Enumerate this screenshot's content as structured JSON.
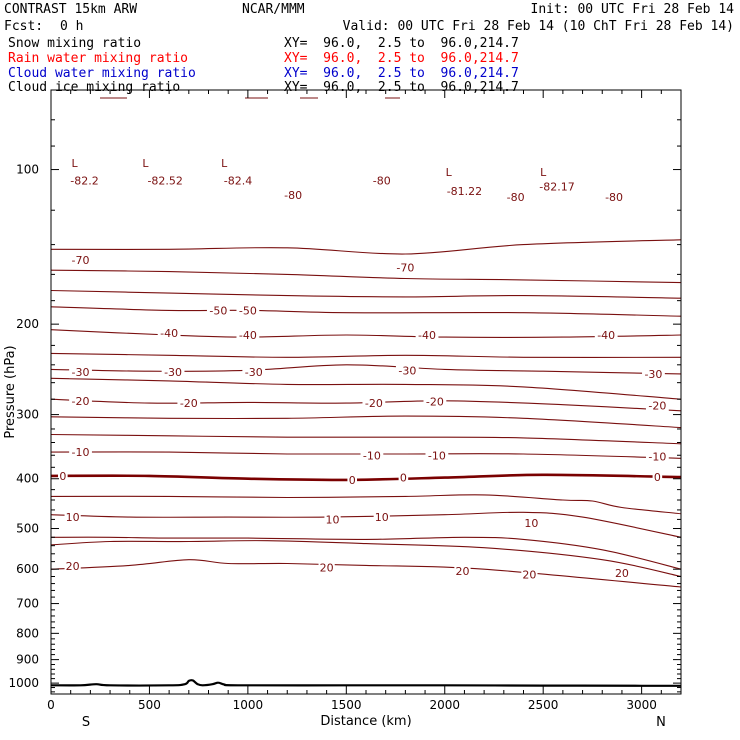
{
  "header": {
    "title": "CONTRAST 15km ARW",
    "center": "NCAR/MMM",
    "init": "Init: 00 UTC Fri 28 Feb 14",
    "fcst_label": "Fcst:",
    "fcst_value": "0 h",
    "valid": "Valid: 00 UTC Fri 28 Feb 14 (10 ChT Fri 28 Feb 14)"
  },
  "fields": [
    {
      "name": "Snow mixing ratio",
      "xy": "XY=  96.0,  2.5 to  96.0,214.7",
      "color": "#000000"
    },
    {
      "name": "Rain water mixing ratio",
      "xy": "XY=  96.0,  2.5 to  96.0,214.7",
      "color": "#ff0000"
    },
    {
      "name": "Cloud water mixing ratio",
      "xy": "XY=  96.0,  2.5 to  96.0,214.7",
      "color": "#0000cc"
    },
    {
      "name": "Cloud ice mixing ratio",
      "xy": "XY=  96.0,  2.5 to  96.0,214.7",
      "color": "#000000"
    }
  ],
  "chart_data": {
    "type": "line",
    "title": "",
    "xlabel": "Distance (km)",
    "ylabel": "Pressure (hPa)",
    "xlim": [
      0,
      3200
    ],
    "ylim": [
      1050,
      70
    ],
    "y_scale": "log",
    "x_ticks": [
      0,
      500,
      1000,
      1500,
      2000,
      2500,
      3000
    ],
    "y_ticks": [
      100,
      200,
      300,
      400,
      500,
      600,
      700,
      800,
      900,
      1000
    ],
    "x_end_labels": {
      "left": "S",
      "right": "N"
    },
    "contour_color": "#7a1010",
    "zero_line_color": "#7a0000",
    "terrain_color": "#000000",
    "isotherms": [
      {
        "value": -70,
        "points": [
          [
            0,
            143
          ],
          [
            600,
            143
          ],
          [
            1200,
            142
          ],
          [
            1800,
            146
          ],
          [
            2400,
            140
          ],
          [
            3200,
            137
          ]
        ]
      },
      {
        "value": -70,
        "points": [
          [
            0,
            157
          ],
          [
            600,
            158
          ],
          [
            1200,
            160
          ],
          [
            1800,
            163
          ],
          [
            2400,
            164
          ],
          [
            3200,
            166
          ]
        ]
      },
      {
        "value": -60,
        "points": [
          [
            0,
            172
          ],
          [
            600,
            174
          ],
          [
            1200,
            176
          ],
          [
            1800,
            177
          ],
          [
            2400,
            176
          ],
          [
            3200,
            178
          ]
        ]
      },
      {
        "value": -50,
        "points": [
          [
            0,
            185
          ],
          [
            600,
            188
          ],
          [
            1000,
            188
          ],
          [
            1500,
            190
          ],
          [
            2400,
            190
          ],
          [
            3200,
            193
          ]
        ]
      },
      {
        "value": -40,
        "points": [
          [
            0,
            205
          ],
          [
            600,
            210
          ],
          [
            1000,
            212
          ],
          [
            1500,
            210
          ],
          [
            2000,
            212
          ],
          [
            2600,
            212
          ],
          [
            3200,
            210
          ]
        ]
      },
      {
        "value": -40,
        "points": [
          [
            0,
            228
          ],
          [
            600,
            230
          ],
          [
            1200,
            232
          ],
          [
            1800,
            230
          ],
          [
            2400,
            232
          ],
          [
            3200,
            232
          ]
        ]
      },
      {
        "value": -30,
        "points": [
          [
            0,
            245
          ],
          [
            500,
            247
          ],
          [
            1000,
            246
          ],
          [
            1500,
            240
          ],
          [
            2000,
            245
          ],
          [
            2500,
            247
          ],
          [
            3200,
            250
          ]
        ]
      },
      {
        "value": -30,
        "points": [
          [
            0,
            255
          ],
          [
            600,
            258
          ],
          [
            1200,
            262
          ],
          [
            1800,
            262
          ],
          [
            2400,
            265
          ],
          [
            3200,
            280
          ]
        ]
      },
      {
        "value": -20,
        "points": [
          [
            0,
            280
          ],
          [
            500,
            285
          ],
          [
            1000,
            284
          ],
          [
            1500,
            285
          ],
          [
            2000,
            282
          ],
          [
            2600,
            287
          ],
          [
            3200,
            295
          ]
        ]
      },
      {
        "value": -20,
        "points": [
          [
            0,
            303
          ],
          [
            600,
            305
          ],
          [
            1200,
            305
          ],
          [
            1800,
            302
          ],
          [
            2400,
            305
          ],
          [
            3200,
            318
          ]
        ]
      },
      {
        "value": -10,
        "points": [
          [
            0,
            328
          ],
          [
            600,
            330
          ],
          [
            1200,
            332
          ],
          [
            1800,
            332
          ],
          [
            2400,
            333
          ],
          [
            3200,
            342
          ]
        ]
      },
      {
        "value": -10,
        "points": [
          [
            0,
            355
          ],
          [
            600,
            355
          ],
          [
            1200,
            358
          ],
          [
            1800,
            358
          ],
          [
            2400,
            358
          ],
          [
            3200,
            365
          ]
        ]
      },
      {
        "value": 0,
        "points": [
          [
            0,
            395
          ],
          [
            500,
            395
          ],
          [
            1000,
            400
          ],
          [
            1500,
            402
          ],
          [
            2000,
            398
          ],
          [
            2500,
            393
          ],
          [
            3200,
            397
          ]
        ]
      },
      {
        "value": 0,
        "points": [
          [
            0,
            433
          ],
          [
            600,
            433
          ],
          [
            1200,
            435
          ],
          [
            1800,
            433
          ],
          [
            2200,
            430
          ],
          [
            2600,
            440
          ],
          [
            2750,
            442
          ],
          [
            2900,
            455
          ],
          [
            3200,
            468
          ]
        ]
      },
      {
        "value": 10,
        "points": [
          [
            0,
            470
          ],
          [
            400,
            475
          ],
          [
            900,
            475
          ],
          [
            1400,
            475
          ],
          [
            2000,
            470
          ],
          [
            2400,
            465
          ],
          [
            2700,
            475
          ],
          [
            3200,
            520
          ]
        ]
      },
      {
        "value": 10,
        "points": [
          [
            0,
            520
          ],
          [
            300,
            520
          ],
          [
            600,
            522
          ],
          [
            1000,
            522
          ],
          [
            1600,
            525
          ],
          [
            2100,
            520
          ],
          [
            2400,
            525
          ],
          [
            2800,
            550
          ],
          [
            3200,
            600
          ]
        ]
      },
      {
        "value": 20,
        "points": [
          [
            0,
            538
          ],
          [
            300,
            530
          ],
          [
            700,
            530
          ],
          [
            1100,
            528
          ],
          [
            1600,
            535
          ],
          [
            2200,
            545
          ],
          [
            2800,
            575
          ],
          [
            3200,
            620
          ]
        ]
      },
      {
        "value": 20,
        "points": [
          [
            0,
            600
          ],
          [
            400,
            590
          ],
          [
            700,
            575
          ],
          [
            900,
            585
          ],
          [
            1200,
            585
          ],
          [
            1600,
            590
          ],
          [
            2200,
            600
          ],
          [
            3200,
            650
          ]
        ]
      }
    ],
    "contour_labels": [
      {
        "text": "-82.2",
        "x": 170,
        "p": 105
      },
      {
        "text": "-82.52",
        "x": 580,
        "p": 105
      },
      {
        "text": "-82.4",
        "x": 950,
        "p": 105
      },
      {
        "text": "-80",
        "x": 1230,
        "p": 112
      },
      {
        "text": "-80",
        "x": 1680,
        "p": 105
      },
      {
        "text": "-81.22",
        "x": 2100,
        "p": 110
      },
      {
        "text": "-80",
        "x": 2360,
        "p": 113
      },
      {
        "text": "-82.17",
        "x": 2570,
        "p": 108
      },
      {
        "text": "-80",
        "x": 2860,
        "p": 113
      },
      {
        "text": "-70",
        "x": 150,
        "p": 150
      },
      {
        "text": "-70",
        "x": 1800,
        "p": 155
      },
      {
        "text": "-50",
        "x": 850,
        "p": 188
      },
      {
        "text": "-50",
        "x": 1000,
        "p": 188
      },
      {
        "text": "-40",
        "x": 600,
        "p": 208
      },
      {
        "text": "-40",
        "x": 1000,
        "p": 210
      },
      {
        "text": "-40",
        "x": 1910,
        "p": 210
      },
      {
        "text": "-40",
        "x": 2820,
        "p": 210
      },
      {
        "text": "-30",
        "x": 150,
        "p": 248
      },
      {
        "text": "-30",
        "x": 620,
        "p": 248
      },
      {
        "text": "-30",
        "x": 1030,
        "p": 248
      },
      {
        "text": "-30",
        "x": 1810,
        "p": 246
      },
      {
        "text": "-30",
        "x": 3060,
        "p": 250
      },
      {
        "text": "-20",
        "x": 150,
        "p": 282
      },
      {
        "text": "-20",
        "x": 700,
        "p": 285
      },
      {
        "text": "-20",
        "x": 1640,
        "p": 285
      },
      {
        "text": "-20",
        "x": 1950,
        "p": 283
      },
      {
        "text": "-20",
        "x": 3080,
        "p": 288
      },
      {
        "text": "-10",
        "x": 150,
        "p": 355
      },
      {
        "text": "-10",
        "x": 1630,
        "p": 360
      },
      {
        "text": "-10",
        "x": 1960,
        "p": 360
      },
      {
        "text": "-10",
        "x": 3080,
        "p": 362
      },
      {
        "text": "0",
        "x": 60,
        "p": 395
      },
      {
        "text": "0",
        "x": 1530,
        "p": 402
      },
      {
        "text": "0",
        "x": 1790,
        "p": 398
      },
      {
        "text": "0",
        "x": 3080,
        "p": 397
      },
      {
        "text": "10",
        "x": 110,
        "p": 475
      },
      {
        "text": "10",
        "x": 1430,
        "p": 480
      },
      {
        "text": "10",
        "x": 1680,
        "p": 475
      },
      {
        "text": "10",
        "x": 2440,
        "p": 488
      },
      {
        "text": "20",
        "x": 110,
        "p": 592
      },
      {
        "text": "20",
        "x": 1400,
        "p": 596
      },
      {
        "text": "20",
        "x": 2090,
        "p": 605
      },
      {
        "text": "20",
        "x": 2430,
        "p": 615
      },
      {
        "text": "20",
        "x": 2900,
        "p": 610
      }
    ],
    "low_markers": [
      {
        "text": "L",
        "x": 120,
        "p": 97
      },
      {
        "text": "L",
        "x": 480,
        "p": 97
      },
      {
        "text": "L",
        "x": 880,
        "p": 97
      },
      {
        "text": "L",
        "x": 2020,
        "p": 101
      },
      {
        "text": "L",
        "x": 2500,
        "p": 101
      }
    ],
    "surface_pressure": [
      [
        0,
        1010
      ],
      [
        150,
        1010
      ],
      [
        230,
        1005
      ],
      [
        300,
        1010
      ],
      [
        600,
        1010
      ],
      [
        680,
        1005
      ],
      [
        700,
        990
      ],
      [
        720,
        988
      ],
      [
        745,
        1005
      ],
      [
        770,
        1010
      ],
      [
        820,
        1005
      ],
      [
        850,
        998
      ],
      [
        880,
        1006
      ],
      [
        950,
        1010
      ],
      [
        1500,
        1010
      ],
      [
        2000,
        1010
      ],
      [
        2500,
        1011
      ],
      [
        3000,
        1012
      ],
      [
        3200,
        1012
      ]
    ]
  }
}
